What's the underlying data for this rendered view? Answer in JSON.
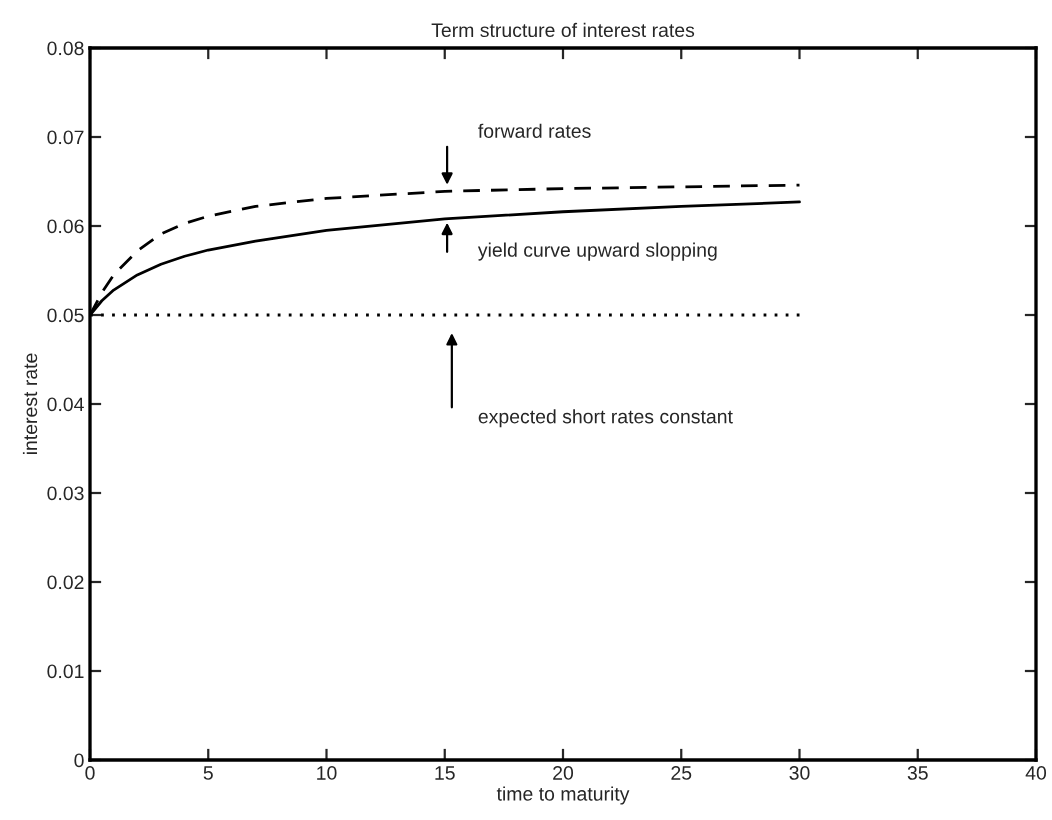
{
  "chart_data": {
    "type": "line",
    "title": "Term structure of interest rates",
    "xlabel": "time to maturity",
    "ylabel": "interest rate",
    "series": [
      {
        "color": "#000000",
        "line_style": "dashed",
        "x": [
          0,
          0.5,
          1,
          2,
          3,
          4,
          5,
          7,
          10,
          15,
          20,
          25,
          30
        ],
        "values": [
          0.05,
          0.0525,
          0.0545,
          0.0572,
          0.0591,
          0.0603,
          0.0611,
          0.0622,
          0.0631,
          0.0639,
          0.0642,
          0.0644,
          0.0646
        ]
      },
      {
        "color": "#000000",
        "line_style": "solid",
        "x": [
          0,
          0.5,
          1,
          2,
          3,
          4,
          5,
          7,
          10,
          15,
          20,
          25,
          30
        ],
        "values": [
          0.05,
          0.0516,
          0.0528,
          0.0545,
          0.0557,
          0.0566,
          0.0573,
          0.0583,
          0.0595,
          0.0608,
          0.0616,
          0.0622,
          0.0627
        ]
      },
      {
        "color": "#000000",
        "line_style": "dotted",
        "x": [
          0,
          30
        ],
        "values": [
          0.05,
          0.05
        ]
      }
    ],
    "annotations": [
      "forward rates",
      "yield curve upward slopping",
      "expected short rates constant"
    ],
    "xlim": [
      0,
      40
    ],
    "xticks": [
      0,
      5,
      10,
      15,
      20,
      25,
      30,
      35,
      40
    ],
    "ylim": [
      0,
      0.08
    ],
    "yticks": [
      0,
      0.01,
      0.02,
      0.03,
      0.04,
      0.05,
      0.06,
      0.07,
      0.08
    ],
    "grid": false,
    "legend": false,
    "marker": "none"
  }
}
